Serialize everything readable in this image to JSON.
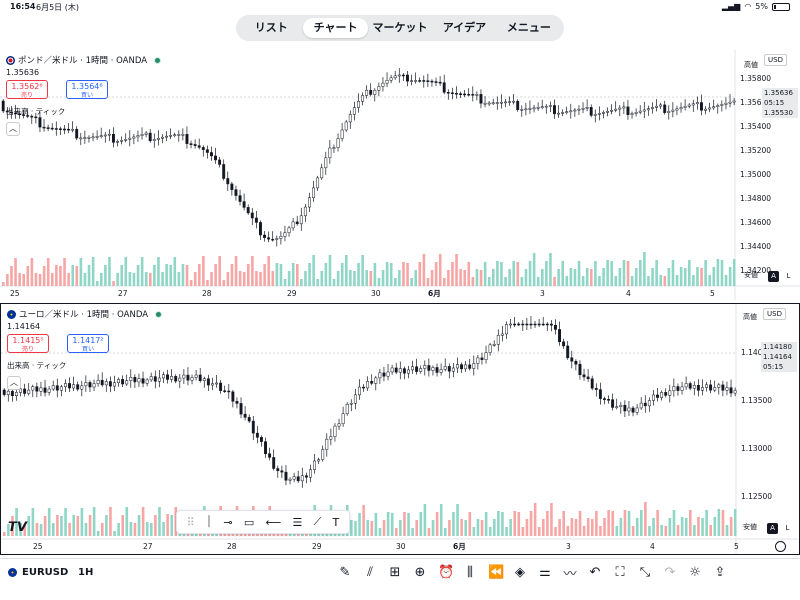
{
  "status": {
    "time": "16:54",
    "date": "6月5日 (木)",
    "battery": "5%"
  },
  "nav": {
    "tabs": [
      {
        "label": "リスト",
        "active": false
      },
      {
        "label": "チャート",
        "active": true
      },
      {
        "label": "マーケット",
        "active": false
      },
      {
        "label": "アイデア",
        "active": false
      },
      {
        "label": "メニュー",
        "active": false
      }
    ]
  },
  "top_chart": {
    "title": "ポンド／米ドル · 1時間 · OANDA",
    "last": "1.35636",
    "sell_price": "1.3562⁶",
    "sell_label": "売り",
    "buy_price": "1.3564⁶",
    "buy_label": "買い",
    "volume_label": "出来高 · ティック",
    "currency": "USD",
    "high_label": "高値",
    "low_label": "安値",
    "y_ticks": [
      "1.35800",
      "1.35600",
      "1.35400",
      "1.35200",
      "1.35000",
      "1.34800",
      "1.34600",
      "1.34400",
      "1.34200"
    ],
    "price_tag": "1.35636",
    "countdown": "05:15",
    "low_tag": "1.35530",
    "x_labels": [
      "25",
      "27",
      "28",
      "29",
      "30",
      "6月",
      "3",
      "4",
      "5"
    ],
    "btn_a": "A",
    "btn_l": "L"
  },
  "bottom_chart": {
    "title": "ユーロ／米ドル · 1時間 · OANDA",
    "last": "1.14164",
    "sell_price": "1.1415⁵",
    "sell_label": "売り",
    "buy_price": "1.1417²",
    "buy_label": "買い",
    "volume_label": "出来高 · ティック",
    "currency": "USD",
    "high_label": "高値",
    "low_label": "安値",
    "y_ticks": [
      "1.14000",
      "1.13500",
      "1.13000",
      "1.12500"
    ],
    "high_tag": "1.14180",
    "price_tag": "1.14164",
    "countdown": "05:15",
    "x_labels": [
      "25",
      "27",
      "28",
      "29",
      "30",
      "6月",
      "3",
      "4",
      "5"
    ],
    "btn_a": "A",
    "btn_l": "L"
  },
  "bottom_bar": {
    "symbol": "EURUSD",
    "interval": "1H"
  }
}
